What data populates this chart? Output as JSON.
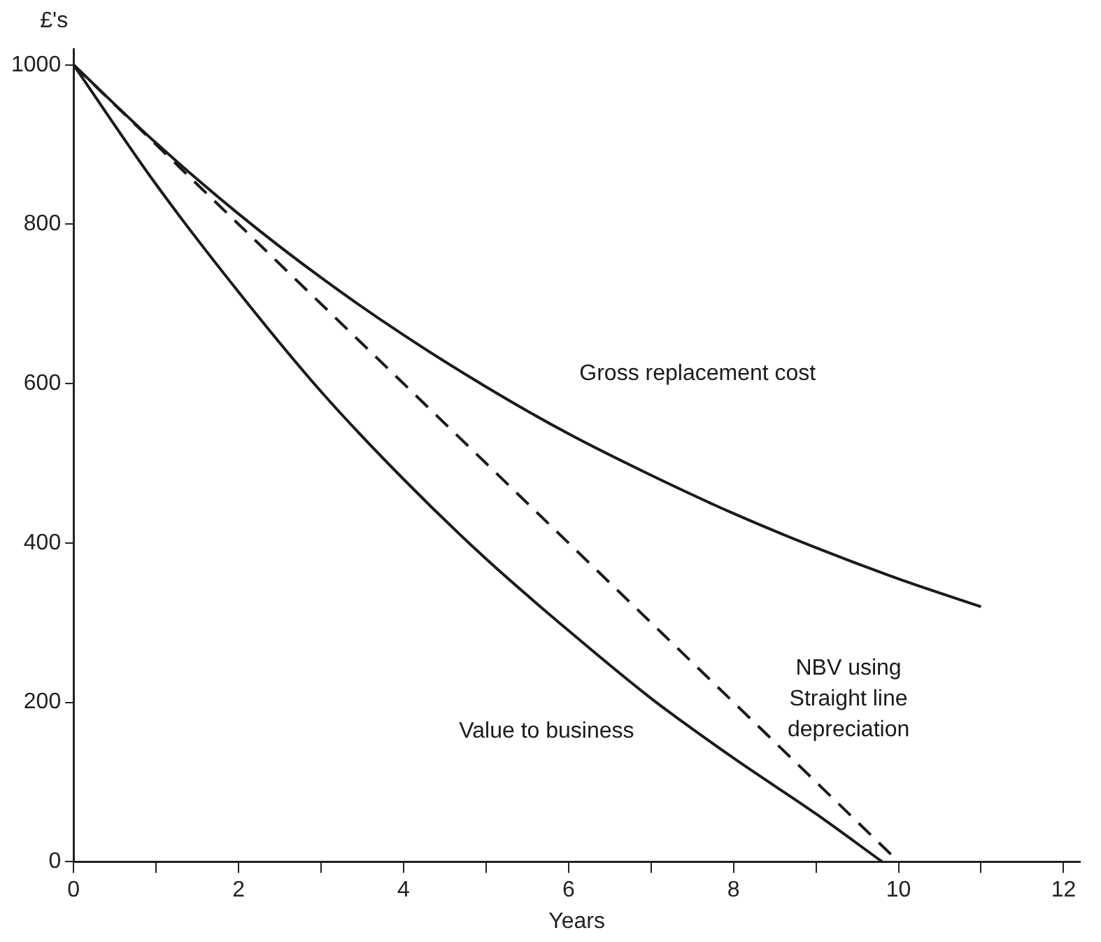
{
  "chart_data": {
    "type": "line",
    "xlabel": "Years",
    "ylabel": "£'s",
    "xlim": [
      0,
      12.2
    ],
    "ylim": [
      0,
      1020
    ],
    "xticks": [
      0,
      {
        "value": 1,
        "label": null
      },
      2,
      {
        "value": 3,
        "label": null
      },
      4,
      {
        "value": 5,
        "label": null
      },
      6,
      {
        "value": 7,
        "label": null
      },
      8,
      {
        "value": 9,
        "label": null
      },
      10,
      {
        "value": 11,
        "label": null
      },
      12
    ],
    "yticks": [
      0,
      200,
      400,
      600,
      800,
      1000
    ],
    "grid": false,
    "legend": false,
    "marker": "none",
    "series": [
      {
        "name": "Gross replacement cost",
        "color": "#1a1a1a",
        "line_style": "solid",
        "x": [
          0,
          1,
          2,
          3,
          4,
          5,
          6,
          7,
          8,
          9,
          10,
          11
        ],
        "values": [
          1000,
          902,
          813,
          733,
          661,
          596,
          537,
          485,
          437,
          394,
          355,
          320
        ]
      },
      {
        "name": "NBV using\nStraight line\ndepreciation",
        "color": "#1a1a1a",
        "line_style": "dashed",
        "x": [
          0,
          10
        ],
        "values": [
          1000,
          0
        ]
      },
      {
        "name": "Value to business",
        "color": "#1a1a1a",
        "line_style": "solid",
        "x": [
          0,
          1,
          2,
          3,
          4,
          5,
          6,
          7,
          8,
          9,
          9.8
        ],
        "values": [
          1000,
          850,
          715,
          590,
          480,
          380,
          290,
          205,
          130,
          60,
          0
        ]
      }
    ]
  }
}
